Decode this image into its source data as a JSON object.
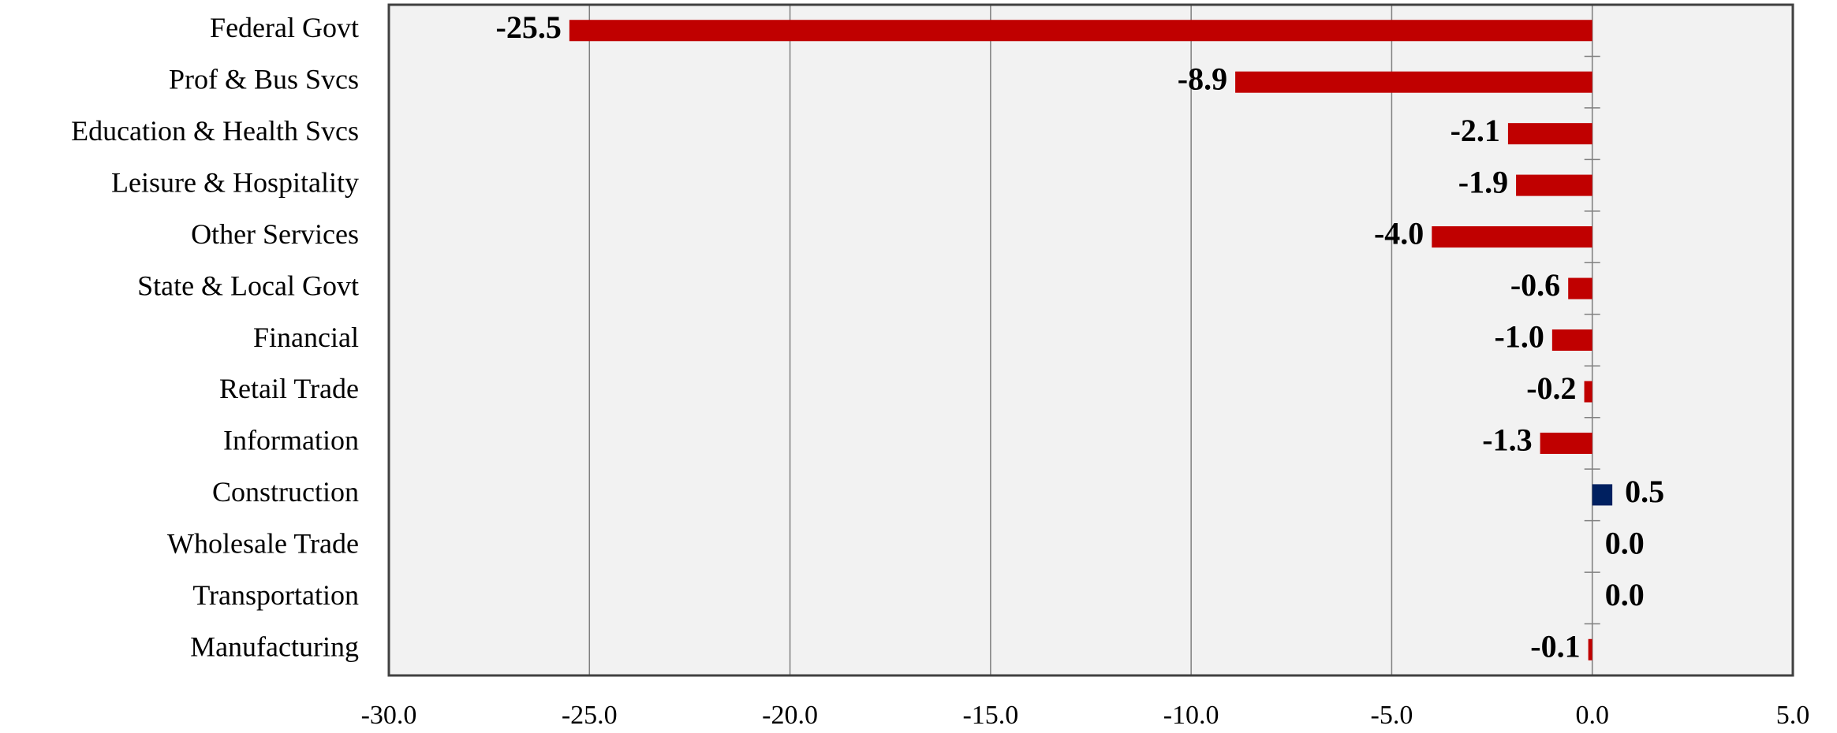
{
  "chart_data": {
    "type": "hbar",
    "categories": [
      "Federal Govt",
      "Prof & Bus Svcs",
      "Education & Health Svcs",
      "Leisure & Hospitality",
      "Other Services",
      "State & Local Govt",
      "Financial",
      "Retail Trade",
      "Information",
      "Construction",
      "Wholesale Trade",
      "Transportation",
      "Manufacturing"
    ],
    "values": [
      -25.5,
      -8.9,
      -2.1,
      -1.9,
      -4.0,
      -0.6,
      -1.0,
      -0.2,
      -1.3,
      0.5,
      0.0,
      0.0,
      -0.1
    ],
    "value_labels": [
      "-25.5",
      "-8.9",
      "-2.1",
      "-1.9",
      "-4.0",
      "-0.6",
      "-1.0",
      "-0.2",
      "-1.3",
      "0.5",
      "0.0",
      "0.0",
      "-0.1"
    ],
    "color_negative": "#c00000",
    "color_positive": "#002060",
    "xlim": [
      -30,
      5
    ],
    "xticks": [
      {
        "value": -30,
        "label": "-30.0"
      },
      {
        "value": -25,
        "label": "-25.0"
      },
      {
        "value": -20,
        "label": "-20.0"
      },
      {
        "value": -15,
        "label": "-15.0"
      },
      {
        "value": -10,
        "label": "-10.0"
      },
      {
        "value": -5,
        "label": "-5.0"
      },
      {
        "value": 0,
        "label": "0.0"
      },
      {
        "value": 5,
        "label": "5.0"
      }
    ],
    "grid": true
  }
}
